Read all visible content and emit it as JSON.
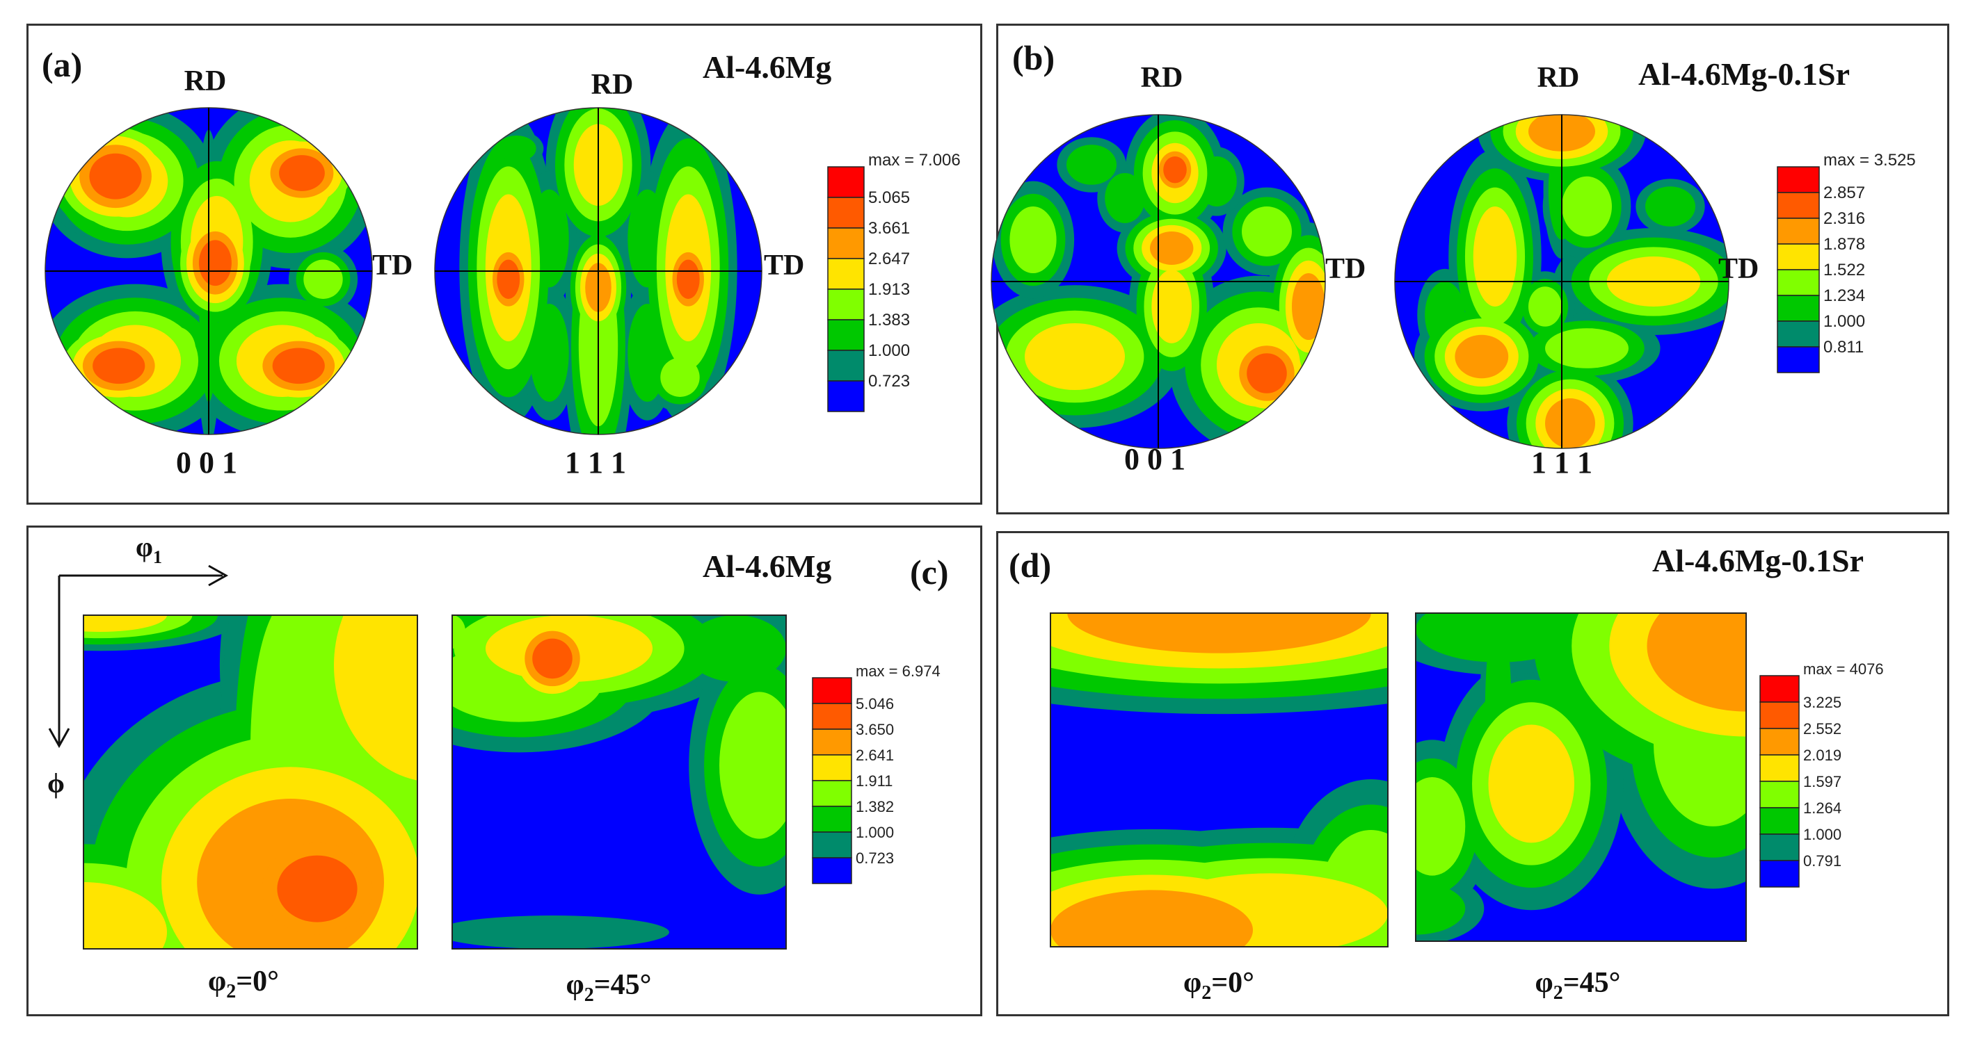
{
  "colors": {
    "levels": [
      "#0000ff",
      "#008b6b",
      "#00c800",
      "#80ff00",
      "#ffe400",
      "#ff9900",
      "#ff5a00",
      "#ff0000"
    ],
    "frame": "#333333"
  },
  "panels": [
    {
      "id": "a",
      "tag": "(a)",
      "alloy": "Al-4.6Mg",
      "type": "pole",
      "legend": [
        "max = 7.006",
        "5.065",
        "3.661",
        "2.647",
        "1.913",
        "1.383",
        "1.000",
        "0.723"
      ],
      "plots": [
        {
          "caption": "0 0 1",
          "rd": "RD",
          "td": "TD",
          "blobs": [
            [
              0.05,
              -0.18,
              0.16,
              0.28,
              4
            ],
            [
              0.04,
              -0.05,
              0.1,
              0.14,
              6
            ],
            [
              0.0,
              0.1,
              0.06,
              0.7,
              2
            ],
            [
              -0.5,
              -0.55,
              0.25,
              0.22,
              4
            ],
            [
              0.5,
              -0.55,
              0.25,
              0.25,
              4
            ],
            [
              -0.45,
              0.55,
              0.28,
              0.22,
              4
            ],
            [
              0.45,
              0.55,
              0.28,
              0.22,
              4
            ],
            [
              -0.57,
              -0.58,
              0.16,
              0.14,
              6
            ],
            [
              0.57,
              -0.6,
              0.14,
              0.11,
              6
            ],
            [
              -0.55,
              0.58,
              0.16,
              0.11,
              6
            ],
            [
              0.55,
              0.58,
              0.16,
              0.11,
              6
            ],
            [
              -0.2,
              0.48,
              0.12,
              0.14,
              3
            ],
            [
              0.7,
              0.05,
              0.12,
              0.12,
              3
            ],
            [
              0.35,
              0.75,
              0.12,
              0.1,
              2
            ]
          ]
        },
        {
          "caption": "1 1 1",
          "rd": "RD",
          "td": "TD",
          "blobs": [
            [
              -0.55,
              -0.02,
              0.14,
              0.45,
              4
            ],
            [
              -0.55,
              0.05,
              0.07,
              0.12,
              6
            ],
            [
              0.55,
              -0.02,
              0.14,
              0.45,
              4
            ],
            [
              0.55,
              0.05,
              0.07,
              0.12,
              6
            ],
            [
              0.0,
              -0.65,
              0.15,
              0.25,
              4
            ],
            [
              0.0,
              0.45,
              0.12,
              0.5,
              3
            ],
            [
              0.0,
              0.1,
              0.08,
              0.15,
              5
            ],
            [
              -0.3,
              -0.2,
              0.12,
              0.3,
              2
            ],
            [
              0.3,
              -0.2,
              0.12,
              0.3,
              2
            ],
            [
              -0.3,
              0.5,
              0.12,
              0.3,
              2
            ],
            [
              0.3,
              0.5,
              0.12,
              0.3,
              2
            ],
            [
              0.5,
              0.65,
              0.12,
              0.12,
              3
            ],
            [
              -0.5,
              -0.75,
              0.12,
              0.08,
              2
            ]
          ]
        }
      ]
    },
    {
      "id": "b",
      "tag": "(b)",
      "alloy": "Al-4.6Mg-0.1Sr",
      "type": "pole",
      "legend": [
        "max = 3.525",
        "2.857",
        "2.316",
        "1.878",
        "1.522",
        "1.234",
        "1.000",
        "0.811"
      ],
      "plots": [
        {
          "caption": "0 0 1",
          "rd": "RD",
          "td": "TD",
          "blobs": [
            [
              0.1,
              -0.65,
              0.14,
              0.18,
              4
            ],
            [
              0.1,
              -0.67,
              0.07,
              0.08,
              6
            ],
            [
              0.08,
              -0.2,
              0.13,
              0.1,
              5
            ],
            [
              0.08,
              0.15,
              0.12,
              0.22,
              4
            ],
            [
              -0.5,
              0.45,
              0.3,
              0.2,
              4
            ],
            [
              0.6,
              0.5,
              0.25,
              0.25,
              4
            ],
            [
              0.65,
              0.55,
              0.12,
              0.12,
              6
            ],
            [
              -0.75,
              -0.25,
              0.14,
              0.2,
              3
            ],
            [
              0.65,
              -0.3,
              0.15,
              0.15,
              3
            ],
            [
              0.9,
              0.15,
              0.1,
              0.2,
              5
            ],
            [
              -0.2,
              -0.5,
              0.12,
              0.15,
              2
            ],
            [
              0.35,
              -0.6,
              0.12,
              0.15,
              2
            ],
            [
              -0.4,
              -0.7,
              0.15,
              0.12,
              2
            ]
          ]
        },
        {
          "caption": "1 1 1",
          "rd": "RD",
          "td": "TD",
          "blobs": [
            [
              0.0,
              -0.9,
              0.2,
              0.12,
              5
            ],
            [
              0.05,
              0.85,
              0.15,
              0.15,
              5
            ],
            [
              -0.4,
              -0.15,
              0.13,
              0.3,
              4
            ],
            [
              -0.48,
              0.45,
              0.16,
              0.13,
              5
            ],
            [
              0.55,
              0.0,
              0.28,
              0.15,
              4
            ],
            [
              0.15,
              0.4,
              0.25,
              0.12,
              3
            ],
            [
              0.15,
              -0.45,
              0.15,
              0.18,
              3
            ],
            [
              -0.1,
              0.15,
              0.1,
              0.12,
              3
            ],
            [
              0.65,
              -0.45,
              0.15,
              0.12,
              2
            ],
            [
              -0.7,
              0.2,
              0.12,
              0.2,
              2
            ],
            [
              0.0,
              -0.55,
              0.08,
              0.3,
              2
            ]
          ]
        }
      ]
    },
    {
      "id": "c",
      "tag": "(c)",
      "alloy": "Al-4.6Mg",
      "type": "odf",
      "axes": {
        "x": "φ",
        "x_sub": "1",
        "y": "ϕ"
      },
      "legend": [
        "max = 6.974",
        "5.046",
        "3.650",
        "2.641",
        "1.911",
        "1.382",
        "1.000",
        "0.723"
      ],
      "plots": [
        {
          "caption": "φ",
          "caption_sub": "2",
          "caption_rest": "=0°",
          "blobs": [
            [
              0.62,
              0.8,
              0.28,
              0.25,
              5
            ],
            [
              0.7,
              0.82,
              0.12,
              0.1,
              6
            ],
            [
              1.05,
              0.15,
              0.3,
              0.35,
              4
            ],
            [
              0.0,
              0.95,
              0.25,
              0.15,
              4
            ],
            [
              0.05,
              0.0,
              0.2,
              0.05,
              4
            ],
            [
              0.62,
              0.4,
              0.12,
              0.45,
              3
            ],
            [
              0.9,
              0.75,
              0.1,
              0.3,
              3
            ]
          ]
        },
        {
          "caption": "φ",
          "caption_sub": "2",
          "caption_rest": "=45°",
          "blobs": [
            [
              0.35,
              0.1,
              0.25,
              0.1,
              4
            ],
            [
              0.3,
              0.13,
              0.06,
              0.06,
              6
            ],
            [
              0.2,
              0.2,
              0.25,
              0.12,
              3
            ],
            [
              0.92,
              0.45,
              0.12,
              0.22,
              3
            ],
            [
              0.85,
              0.1,
              0.15,
              0.1,
              2
            ],
            [
              0.3,
              0.95,
              0.35,
              0.05,
              1
            ],
            [
              0.0,
              0.05,
              0.04,
              0.05,
              3
            ]
          ]
        }
      ]
    },
    {
      "id": "d",
      "tag": "(d)",
      "alloy": "Al-4.6Mg-0.1Sr",
      "type": "odf",
      "legend": [
        "max = 4076",
        "3.225",
        "2.552",
        "2.019",
        "1.597",
        "1.264",
        "1.000",
        "0.791"
      ],
      "plots": [
        {
          "caption": "φ",
          "caption_sub": "2",
          "caption_rest": "=0°",
          "blobs": [
            [
              0.5,
              0.0,
              0.45,
              0.12,
              5
            ],
            [
              0.3,
              0.95,
              0.3,
              0.12,
              5
            ],
            [
              0.65,
              0.9,
              0.35,
              0.12,
              4
            ],
            [
              0.95,
              0.85,
              0.15,
              0.2,
              3
            ],
            [
              0.0,
              0.9,
              0.15,
              0.1,
              3
            ]
          ]
        },
        {
          "caption": "φ",
          "caption_sub": "2",
          "caption_rest": "=45°",
          "blobs": [
            [
              1.0,
              0.1,
              0.3,
              0.2,
              5
            ],
            [
              0.9,
              0.4,
              0.18,
              0.25,
              3
            ],
            [
              0.35,
              0.52,
              0.13,
              0.18,
              4
            ],
            [
              0.05,
              0.65,
              0.1,
              0.15,
              3
            ],
            [
              0.0,
              0.9,
              0.15,
              0.08,
              2
            ],
            [
              0.25,
              0.05,
              0.25,
              0.1,
              2
            ],
            [
              0.25,
              0.3,
              0.04,
              0.3,
              2
            ],
            [
              0.55,
              0.35,
              0.15,
              0.08,
              1
            ]
          ]
        }
      ]
    }
  ],
  "chart_data": [
    {
      "type": "heatmap",
      "panel": "(a)",
      "title": "Al-4.6Mg",
      "plots": [
        "0 0 1",
        "1 1 1"
      ],
      "contour_levels": [
        0.723,
        1.0,
        1.383,
        1.913,
        2.647,
        3.661,
        5.065
      ],
      "max": 7.006,
      "axis_labels": [
        "RD",
        "TD"
      ]
    },
    {
      "type": "heatmap",
      "panel": "(b)",
      "title": "Al-4.6Mg-0.1Sr",
      "plots": [
        "0 0 1",
        "1 1 1"
      ],
      "contour_levels": [
        0.811,
        1.0,
        1.234,
        1.522,
        1.878,
        2.316,
        2.857
      ],
      "max": 3.525,
      "axis_labels": [
        "RD",
        "TD"
      ]
    },
    {
      "type": "heatmap",
      "panel": "(c)",
      "title": "Al-4.6Mg",
      "plots": [
        "φ2=0°",
        "φ2=45°"
      ],
      "contour_levels": [
        0.723,
        1.0,
        1.382,
        1.911,
        2.641,
        3.65,
        5.046
      ],
      "max": 6.974,
      "axis_labels": [
        "φ1",
        "ϕ"
      ]
    },
    {
      "type": "heatmap",
      "panel": "(d)",
      "title": "Al-4.6Mg-0.1Sr",
      "plots": [
        "φ2=0°",
        "φ2=45°"
      ],
      "contour_levels": [
        0.791,
        1.0,
        1.264,
        1.597,
        2.019,
        2.552,
        3.225
      ],
      "max": 4076,
      "axis_labels": []
    }
  ]
}
